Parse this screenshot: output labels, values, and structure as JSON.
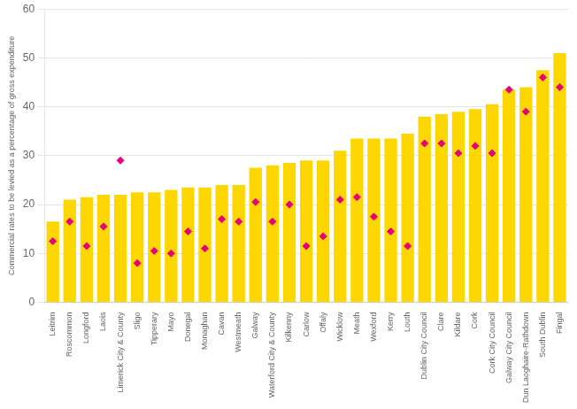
{
  "chart_data": {
    "type": "bar",
    "categories": [
      "Leitrim",
      "Roscommon",
      "Longford",
      "Laois",
      "Limerick City & County",
      "Sligo",
      "Tipperary",
      "Mayo",
      "Donegal",
      "Monaghan",
      "Cavan",
      "Westmeath",
      "Galway",
      "Waterford City & County",
      "Kilkenny",
      "Carlow",
      "Offaly",
      "Wicklow",
      "Meath",
      "Wexford",
      "Kerry",
      "Louth",
      "Dublin City Council",
      "Clare",
      "Kildare",
      "Cork",
      "Cork City Council",
      "Galway City Council",
      "Dun Laoghaire-Rathdown",
      "South Dublin",
      "Fingal"
    ],
    "series": [
      {
        "type": "bar",
        "color": "#FFD700",
        "values": [
          16.5,
          21.0,
          21.5,
          22.0,
          22.0,
          22.5,
          22.5,
          23.0,
          23.5,
          23.5,
          24.0,
          24.0,
          27.5,
          28.0,
          28.5,
          29.0,
          29.0,
          31.0,
          33.5,
          33.5,
          33.5,
          34.5,
          38.0,
          38.5,
          39.0,
          39.5,
          40.5,
          43.5,
          44.0,
          47.5,
          51.0
        ]
      },
      {
        "type": "scatter",
        "marker": "diamond",
        "color": "#E8007A",
        "values": [
          12.5,
          16.5,
          11.5,
          15.5,
          29.0,
          8.0,
          10.5,
          10.0,
          14.5,
          11.0,
          17.0,
          16.5,
          20.5,
          16.5,
          20.0,
          11.5,
          13.5,
          21.0,
          21.5,
          17.5,
          14.5,
          11.5,
          32.5,
          32.5,
          30.5,
          32.0,
          30.5,
          43.5,
          39.0,
          46.0,
          44.0
        ]
      }
    ],
    "ylabel": "Commercial rates to be levied as a percentage of gross expenditure",
    "ylim": [
      0,
      60
    ],
    "yticks": [
      0,
      10,
      20,
      30,
      40,
      50,
      60
    ],
    "grid": true
  }
}
